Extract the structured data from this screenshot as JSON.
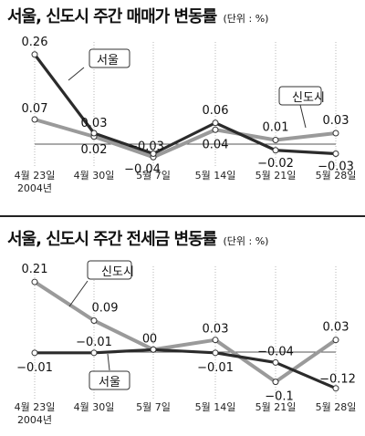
{
  "chart_data": [
    {
      "type": "line",
      "title": "서울, 신도시 주간 매매가 변동률",
      "unit": "(단위 : %)",
      "categories": [
        "4월 23일",
        "4월 30일",
        "5월 7일",
        "5월 14일",
        "5월 21일",
        "5월 28일"
      ],
      "year_label": "2004년",
      "ylim": [
        -0.05,
        0.27
      ],
      "series": [
        {
          "name": "서울",
          "values": [
            0.26,
            0.03,
            -0.03,
            0.06,
            -0.02,
            -0.03
          ],
          "color": "#2b2b2b"
        },
        {
          "name": "신도시",
          "values": [
            0.07,
            0.02,
            -0.04,
            0.04,
            0.01,
            0.03
          ],
          "color": "#9a9a9a"
        }
      ],
      "data_labels": [
        "0.26",
        "0.03",
        "−0.03",
        "0.06",
        "−0.02",
        "−0.03",
        "0.07",
        "0.02",
        "−0.04",
        "0.04",
        "0.01",
        "0.03"
      ]
    },
    {
      "type": "line",
      "title": "서울, 신도시 주간 전세금 변동률",
      "unit": "(단위 : %)",
      "categories": [
        "4월 23일",
        "4월 30일",
        "5월 7일",
        "5월 14일",
        "5월 21일",
        "5월 28일"
      ],
      "year_label": "2004년",
      "ylim": [
        -0.135,
        0.23
      ],
      "series": [
        {
          "name": "서울",
          "values": [
            -0.01,
            -0.01,
            0,
            -0.01,
            -0.04,
            -0.12
          ],
          "color": "#2b2b2b"
        },
        {
          "name": "신도시",
          "values": [
            0.21,
            0.09,
            0,
            0.03,
            -0.1,
            0.03
          ],
          "color": "#9a9a9a"
        }
      ],
      "data_labels": [
        "−0.01",
        "−0.01",
        "0",
        "−0.01",
        "−0.04",
        "−0.12",
        "0.21",
        "0.09",
        "0",
        "0.03",
        "−0.1",
        "0.03"
      ]
    }
  ]
}
